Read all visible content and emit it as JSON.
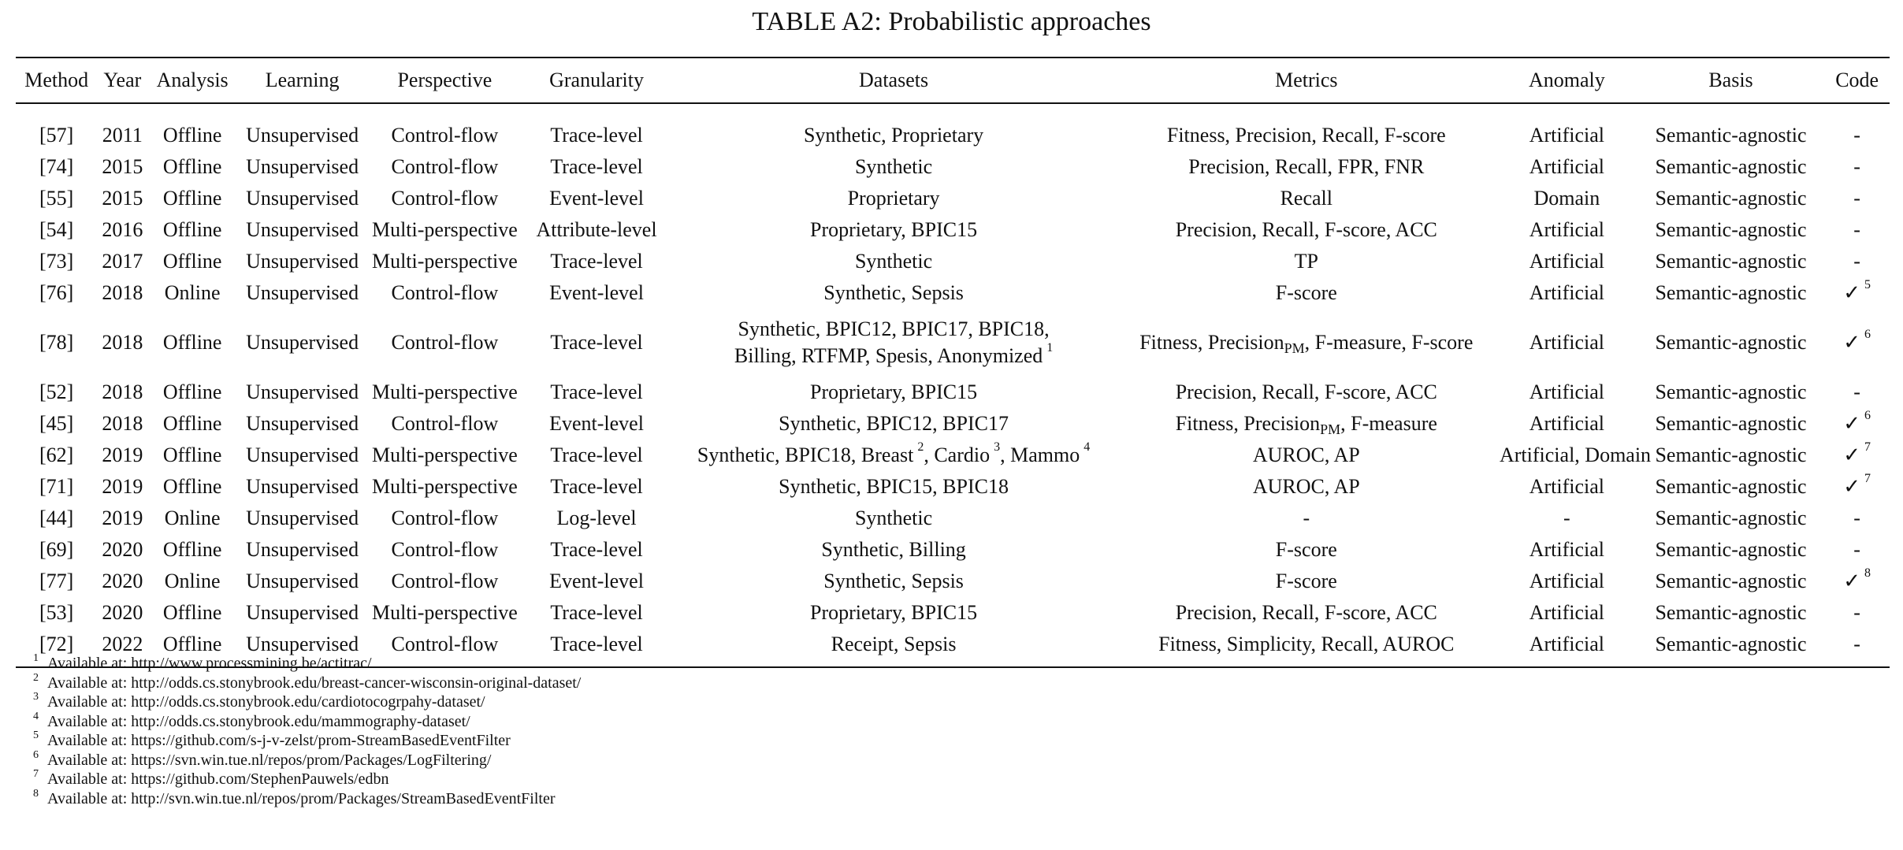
{
  "caption": "TABLE A2: Probabilistic approaches",
  "headers": [
    "Method",
    "Year",
    "Analysis",
    "Learning",
    "Perspective",
    "Granularity",
    "Datasets",
    "Metrics",
    "Anomaly",
    "Basis",
    "Code"
  ],
  "rows": [
    {
      "method": "[57]",
      "year": "2011",
      "analysis": "Offline",
      "learning": "Unsupervised",
      "perspective": "Control-flow",
      "granularity": "Trace-level",
      "datasets": "Synthetic, Proprietary",
      "metrics": "Fitness, Precision, Recall, F-score",
      "anomaly": "Artificial",
      "basis": "Semantic-agnostic",
      "code": "-"
    },
    {
      "method": "[74]",
      "year": "2015",
      "analysis": "Offline",
      "learning": "Unsupervised",
      "perspective": "Control-flow",
      "granularity": "Trace-level",
      "datasets": "Synthetic",
      "metrics": "Precision, Recall, FPR, FNR",
      "anomaly": "Artificial",
      "basis": "Semantic-agnostic",
      "code": "-"
    },
    {
      "method": "[55]",
      "year": "2015",
      "analysis": "Offline",
      "learning": "Unsupervised",
      "perspective": "Control-flow",
      "granularity": "Event-level",
      "datasets": "Proprietary",
      "metrics": "Recall",
      "anomaly": "Domain",
      "basis": "Semantic-agnostic",
      "code": "-"
    },
    {
      "method": "[54]",
      "year": "2016",
      "analysis": "Offline",
      "learning": "Unsupervised",
      "perspective": "Multi-perspective",
      "granularity": "Attribute-level",
      "datasets": "Proprietary, BPIC15",
      "metrics": "Precision, Recall, F-score, ACC",
      "anomaly": "Artificial",
      "basis": "Semantic-agnostic",
      "code": "-"
    },
    {
      "method": "[73]",
      "year": "2017",
      "analysis": "Offline",
      "learning": "Unsupervised",
      "perspective": "Multi-perspective",
      "granularity": "Trace-level",
      "datasets": "Synthetic",
      "metrics": "TP",
      "anomaly": "Artificial",
      "basis": "Semantic-agnostic",
      "code": "-"
    },
    {
      "method": "[76]",
      "year": "2018",
      "analysis": "Online",
      "learning": "Unsupervised",
      "perspective": "Control-flow",
      "granularity": "Event-level",
      "datasets": "Synthetic, Sepsis",
      "metrics": "F-score",
      "anomaly": "Artificial",
      "basis": "Semantic-agnostic",
      "code": "✓",
      "code_note": "5"
    },
    {
      "method": "[78]",
      "year": "2018",
      "analysis": "Offline",
      "learning": "Unsupervised",
      "perspective": "Control-flow",
      "granularity": "Trace-level",
      "datasets_line1": "Synthetic, BPIC12, BPIC17, BPIC18,",
      "datasets_line2": "Billing, RTFMP, Spesis, Anonymized",
      "datasets_note": "1",
      "metrics_a": "Fitness, Precision",
      "metrics_sub": "PM",
      "metrics_b": ", F-measure, F-score",
      "anomaly": "Artificial",
      "basis": "Semantic-agnostic",
      "code": "✓",
      "code_note": "6"
    },
    {
      "method": "[52]",
      "year": "2018",
      "analysis": "Offline",
      "learning": "Unsupervised",
      "perspective": "Multi-perspective",
      "granularity": "Trace-level",
      "datasets": "Proprietary, BPIC15",
      "metrics": "Precision, Recall, F-score, ACC",
      "anomaly": "Artificial",
      "basis": "Semantic-agnostic",
      "code": "-"
    },
    {
      "method": "[45]",
      "year": "2018",
      "analysis": "Offline",
      "learning": "Unsupervised",
      "perspective": "Control-flow",
      "granularity": "Event-level",
      "datasets": "Synthetic, BPIC12, BPIC17",
      "metrics_a": "Fitness, Precision",
      "metrics_sub": "PM",
      "metrics_b": ", F-measure",
      "anomaly": "Artificial",
      "basis": "Semantic-agnostic",
      "code": "✓",
      "code_note": "6"
    },
    {
      "method": "[62]",
      "year": "2019",
      "analysis": "Offline",
      "learning": "Unsupervised",
      "perspective": "Multi-perspective",
      "granularity": "Trace-level",
      "datasets_a": "Synthetic, BPIC18, Breast",
      "datasets_note_a": "2",
      "datasets_b": ", Cardio",
      "datasets_note_b": "3",
      "datasets_c": ", Mammo",
      "datasets_note_c": "4",
      "metrics": "AUROC, AP",
      "anomaly": "Artificial, Domain",
      "basis": "Semantic-agnostic",
      "code": "✓",
      "code_note": "7"
    },
    {
      "method": "[71]",
      "year": "2019",
      "analysis": "Offline",
      "learning": "Unsupervised",
      "perspective": "Multi-perspective",
      "granularity": "Trace-level",
      "datasets": "Synthetic, BPIC15, BPIC18",
      "metrics": "AUROC, AP",
      "anomaly": "Artificial",
      "basis": "Semantic-agnostic",
      "code": "✓",
      "code_note": "7"
    },
    {
      "method": "[44]",
      "year": "2019",
      "analysis": "Online",
      "learning": "Unsupervised",
      "perspective": "Control-flow",
      "granularity": "Log-level",
      "datasets": "Synthetic",
      "metrics": "-",
      "anomaly": "-",
      "basis": "Semantic-agnostic",
      "code": "-"
    },
    {
      "method": "[69]",
      "year": "2020",
      "analysis": "Offline",
      "learning": "Unsupervised",
      "perspective": "Control-flow",
      "granularity": "Trace-level",
      "datasets": "Synthetic, Billing",
      "metrics": "F-score",
      "anomaly": "Artificial",
      "basis": "Semantic-agnostic",
      "code": "-"
    },
    {
      "method": "[77]",
      "year": "2020",
      "analysis": "Online",
      "learning": "Unsupervised",
      "perspective": "Control-flow",
      "granularity": "Event-level",
      "datasets": "Synthetic, Sepsis",
      "metrics": "F-score",
      "anomaly": "Artificial",
      "basis": "Semantic-agnostic",
      "code": "✓",
      "code_note": "8"
    },
    {
      "method": "[53]",
      "year": "2020",
      "analysis": "Offline",
      "learning": "Unsupervised",
      "perspective": "Multi-perspective",
      "granularity": "Trace-level",
      "datasets": "Proprietary, BPIC15",
      "metrics": "Precision, Recall, F-score, ACC",
      "anomaly": "Artificial",
      "basis": "Semantic-agnostic",
      "code": "-"
    },
    {
      "method": "[72]",
      "year": "2022",
      "analysis": "Offline",
      "learning": "Unsupervised",
      "perspective": "Control-flow",
      "granularity": "Trace-level",
      "datasets": "Receipt, Sepsis",
      "metrics": "Fitness, Simplicity, Recall, AUROC",
      "anomaly": "Artificial",
      "basis": "Semantic-agnostic",
      "code": "-"
    }
  ],
  "footnotes": [
    {
      "num": "1",
      "text": "Available at: http://www.processmining.be/actitrac/"
    },
    {
      "num": "2",
      "text": "Available at: http://odds.cs.stonybrook.edu/breast-cancer-wisconsin-original-dataset/"
    },
    {
      "num": "3",
      "text": "Available at: http://odds.cs.stonybrook.edu/cardiotocogrpahy-dataset/"
    },
    {
      "num": "4",
      "text": "Available at: http://odds.cs.stonybrook.edu/mammography-dataset/"
    },
    {
      "num": "5",
      "text": "Available at: https://github.com/s-j-v-zelst/prom-StreamBasedEventFilter"
    },
    {
      "num": "6",
      "text": "Available at: https://svn.win.tue.nl/repos/prom/Packages/LogFiltering/"
    },
    {
      "num": "7",
      "text": "Available at: https://github.com/StephenPauwels/edbn"
    },
    {
      "num": "8",
      "text": "Available at: http://svn.win.tue.nl/repos/prom/Packages/StreamBasedEventFilter"
    }
  ]
}
